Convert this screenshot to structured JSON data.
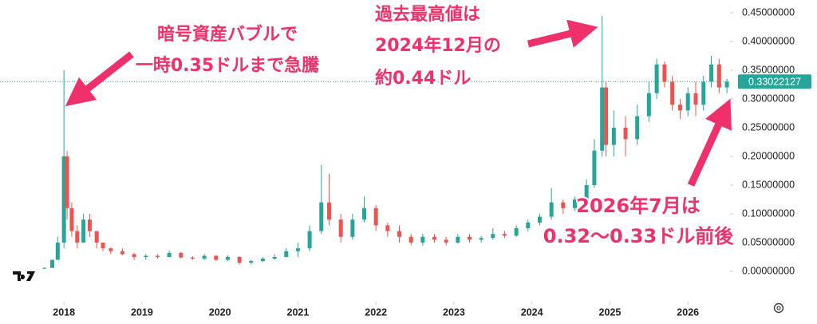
{
  "chart_data": {
    "type": "candlestick",
    "x": [
      2017.75,
      2017.85,
      2017.92,
      2018.0,
      2018.04,
      2018.1,
      2018.17,
      2018.25,
      2018.33,
      2018.42,
      2018.5,
      2018.6,
      2018.75,
      2018.9,
      2019.05,
      2019.2,
      2019.35,
      2019.5,
      2019.65,
      2019.8,
      2019.95,
      2020.1,
      2020.25,
      2020.4,
      2020.55,
      2020.7,
      2020.85,
      2021.0,
      2021.15,
      2021.3,
      2021.4,
      2021.55,
      2021.7,
      2021.85,
      2022.0,
      2022.15,
      2022.3,
      2022.45,
      2022.6,
      2022.75,
      2022.9,
      2023.05,
      2023.2,
      2023.35,
      2023.5,
      2023.65,
      2023.8,
      2023.95,
      2024.1,
      2024.25,
      2024.4,
      2024.55,
      2024.7,
      2024.8,
      2024.9,
      2024.95,
      2025.05,
      2025.2,
      2025.35,
      2025.5,
      2025.6,
      2025.7,
      2025.8,
      2025.9,
      2026.0,
      2026.1,
      2026.2,
      2026.3,
      2026.4,
      2026.5
    ],
    "open": [
      0.006,
      0.006,
      0.02,
      0.05,
      0.2,
      0.11,
      0.07,
      0.05,
      0.09,
      0.07,
      0.05,
      0.04,
      0.035,
      0.03,
      0.025,
      0.027,
      0.025,
      0.032,
      0.024,
      0.022,
      0.027,
      0.02,
      0.025,
      0.015,
      0.018,
      0.022,
      0.025,
      0.035,
      0.04,
      0.07,
      0.12,
      0.09,
      0.06,
      0.09,
      0.11,
      0.08,
      0.07,
      0.06,
      0.05,
      0.06,
      0.055,
      0.05,
      0.06,
      0.055,
      0.058,
      0.065,
      0.062,
      0.075,
      0.085,
      0.095,
      0.12,
      0.11,
      0.125,
      0.15,
      0.21,
      0.32,
      0.22,
      0.25,
      0.23,
      0.27,
      0.31,
      0.36,
      0.33,
      0.29,
      0.28,
      0.31,
      0.29,
      0.33,
      0.36,
      0.32
    ],
    "high": [
      0.007,
      0.02,
      0.06,
      0.35,
      0.21,
      0.12,
      0.08,
      0.1,
      0.1,
      0.07,
      0.05,
      0.042,
      0.04,
      0.032,
      0.03,
      0.03,
      0.036,
      0.034,
      0.026,
      0.03,
      0.028,
      0.028,
      0.026,
      0.02,
      0.025,
      0.03,
      0.04,
      0.05,
      0.08,
      0.185,
      0.17,
      0.1,
      0.1,
      0.13,
      0.115,
      0.085,
      0.08,
      0.065,
      0.065,
      0.065,
      0.06,
      0.065,
      0.065,
      0.062,
      0.075,
      0.07,
      0.08,
      0.09,
      0.1,
      0.145,
      0.125,
      0.13,
      0.16,
      0.23,
      0.445,
      0.33,
      0.28,
      0.27,
      0.29,
      0.33,
      0.37,
      0.365,
      0.34,
      0.3,
      0.32,
      0.33,
      0.34,
      0.375,
      0.37,
      0.335
    ],
    "low": [
      0.005,
      0.006,
      0.02,
      0.04,
      0.09,
      0.06,
      0.04,
      0.05,
      0.06,
      0.04,
      0.035,
      0.03,
      0.028,
      0.02,
      0.02,
      0.022,
      0.024,
      0.022,
      0.02,
      0.02,
      0.018,
      0.018,
      0.012,
      0.012,
      0.016,
      0.02,
      0.024,
      0.025,
      0.035,
      0.065,
      0.08,
      0.05,
      0.055,
      0.085,
      0.07,
      0.06,
      0.05,
      0.045,
      0.045,
      0.05,
      0.045,
      0.048,
      0.05,
      0.05,
      0.055,
      0.058,
      0.06,
      0.07,
      0.08,
      0.09,
      0.1,
      0.105,
      0.12,
      0.145,
      0.2,
      0.2,
      0.2,
      0.2,
      0.22,
      0.26,
      0.3,
      0.32,
      0.28,
      0.265,
      0.27,
      0.27,
      0.28,
      0.32,
      0.31,
      0.31
    ],
    "close": [
      0.006,
      0.02,
      0.05,
      0.2,
      0.11,
      0.07,
      0.05,
      0.09,
      0.07,
      0.05,
      0.04,
      0.035,
      0.03,
      0.025,
      0.027,
      0.025,
      0.032,
      0.024,
      0.022,
      0.027,
      0.02,
      0.025,
      0.015,
      0.018,
      0.022,
      0.025,
      0.035,
      0.04,
      0.07,
      0.12,
      0.09,
      0.06,
      0.09,
      0.11,
      0.08,
      0.07,
      0.06,
      0.05,
      0.06,
      0.055,
      0.05,
      0.06,
      0.055,
      0.058,
      0.065,
      0.062,
      0.075,
      0.085,
      0.095,
      0.12,
      0.11,
      0.125,
      0.15,
      0.21,
      0.32,
      0.22,
      0.25,
      0.23,
      0.27,
      0.31,
      0.36,
      0.33,
      0.29,
      0.28,
      0.31,
      0.29,
      0.33,
      0.36,
      0.32,
      0.33022127
    ],
    "up_color": "#26a69a",
    "down_color": "#ef5350",
    "last_price": 0.33022127,
    "xlim": [
      2017.18,
      2026.54
    ],
    "xticks": [
      2018,
      2019,
      2020,
      2021,
      2022,
      2023,
      2024,
      2025,
      2026
    ],
    "ylim": [
      -0.0528,
      0.4722
    ],
    "yticks": [
      {
        "value": 0,
        "label": "0.00000000"
      },
      {
        "value": 0.05,
        "label": "0.05000000"
      },
      {
        "value": 0.1,
        "label": "0.10000000"
      },
      {
        "value": 0.15,
        "label": "0.15000000"
      },
      {
        "value": 0.2,
        "label": "0.20000000"
      },
      {
        "value": 0.25,
        "label": "0.25000000"
      },
      {
        "value": 0.3,
        "label": "0.30000000"
      },
      {
        "value": 0.35,
        "label": "0.35000000"
      },
      {
        "value": 0.4,
        "label": "0.40000000"
      },
      {
        "value": 0.45,
        "label": "0.45000000"
      }
    ],
    "annotations": [
      [
        "暗号資産バブルで",
        "一時0.35ドルまで急騰"
      ],
      [
        "過去最高値は",
        "2024年12月の",
        "約0.44ドル"
      ],
      [
        "2026年7月は",
        "0.32〜0.33ドル前後"
      ]
    ]
  }
}
